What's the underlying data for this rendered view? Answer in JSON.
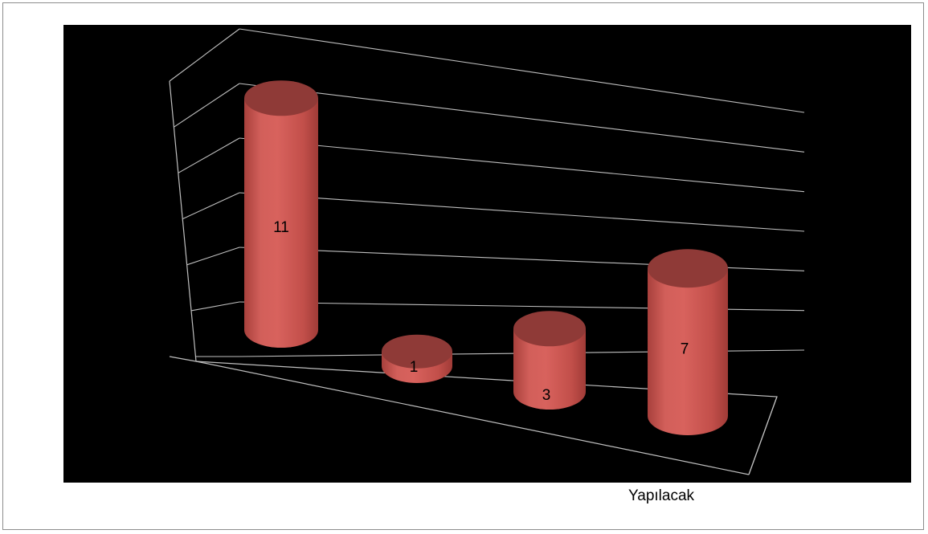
{
  "chart_data": {
    "type": "bar",
    "bar_shape": "cylinder-3d",
    "series": [
      {
        "values": [
          11,
          1,
          3,
          7
        ],
        "color": "#c0504d"
      }
    ],
    "data_labels": [
      "11",
      "1",
      "3",
      "7"
    ],
    "ylim": [
      0,
      12
    ],
    "gridlines": true,
    "legend_placement": "bottom-right"
  },
  "legend": {
    "label": "Yapılacak"
  },
  "colors": {
    "background": "#000000",
    "gridline": "#bfbfbf",
    "bar_body": "#c0504d",
    "bar_top": "#8f3a37",
    "frame_border": "#8c8c8c"
  }
}
